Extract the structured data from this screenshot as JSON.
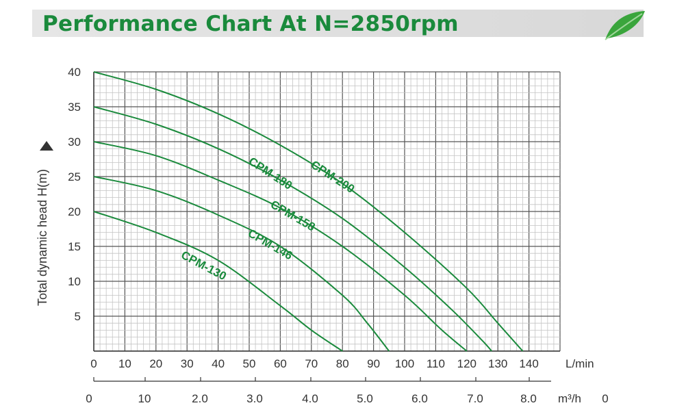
{
  "header": {
    "title": "Performance Chart At N=2850rpm",
    "leaf_icon": "leaf-icon",
    "accent_color": "#1a8a3c"
  },
  "chart_data": {
    "type": "line",
    "title": "Performance Chart At N=2850rpm",
    "ylabel": "Total dynamic head H(m)",
    "xlabel": "L/min",
    "x2label": "m³/h",
    "xlim": [
      0,
      150
    ],
    "ylim": [
      0,
      40
    ],
    "x_ticks": [
      "0",
      "10",
      "20",
      "30",
      "40",
      "50",
      "60",
      "70",
      "80",
      "90",
      "100",
      "110",
      "120",
      "130",
      "140"
    ],
    "x2_ticks": [
      "0",
      "10",
      "2.0",
      "3.0",
      "4.0",
      "5.0",
      "6.0",
      "7.0",
      "8.0",
      "0"
    ],
    "y_ticks": [
      "5",
      "10",
      "15",
      "20",
      "25",
      "30",
      "35",
      "40"
    ],
    "grid": true,
    "line_color": "#1a8a3c",
    "series": [
      {
        "name": "CPM-200",
        "x": [
          0,
          20,
          40,
          60,
          80,
          100,
          120,
          130,
          138
        ],
        "y": [
          40,
          37.5,
          34,
          29.5,
          24,
          17,
          9,
          4,
          0
        ]
      },
      {
        "name": "CPM-180",
        "x": [
          0,
          20,
          40,
          60,
          80,
          100,
          115,
          125,
          128
        ],
        "y": [
          35,
          32.5,
          29,
          24.5,
          19,
          12,
          6,
          1.5,
          0
        ]
      },
      {
        "name": "CPM-158",
        "x": [
          0,
          20,
          40,
          60,
          80,
          100,
          112,
          120
        ],
        "y": [
          30,
          28,
          24.5,
          20.5,
          15,
          8,
          3,
          0
        ]
      },
      {
        "name": "CPM-146",
        "x": [
          0,
          20,
          40,
          60,
          80,
          88,
          95
        ],
        "y": [
          25,
          23,
          19.5,
          15,
          8,
          4,
          0
        ]
      },
      {
        "name": "CPM-130",
        "x": [
          0,
          20,
          40,
          60,
          70,
          80
        ],
        "y": [
          20,
          17,
          13,
          6.5,
          3,
          0
        ]
      }
    ]
  }
}
